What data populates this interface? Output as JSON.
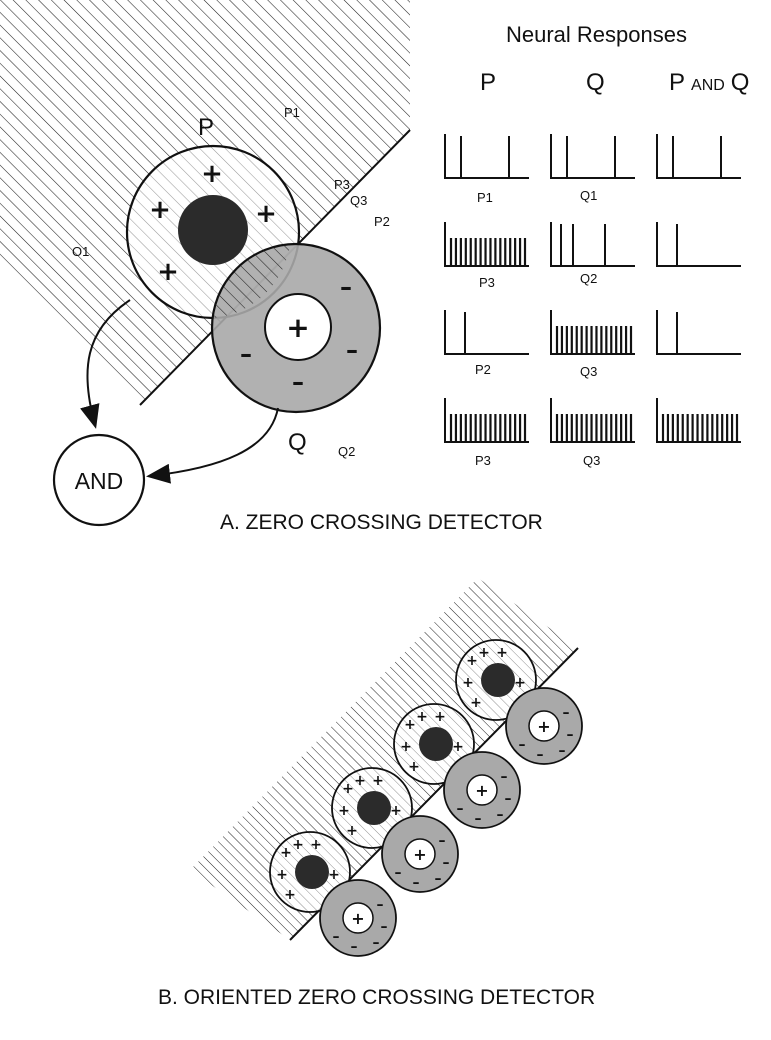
{
  "title": "Neural Responses",
  "columns": {
    "p": "P",
    "q": "Q",
    "p_and_q_pre": "P",
    "p_and_q_and": "AND",
    "p_and_q_post": "Q"
  },
  "rows": [
    {
      "p_label": "P1",
      "q_label": "Q1",
      "p_spikes": 2,
      "q_spikes": 2,
      "pq_spikes": 2
    },
    {
      "p_label": "P3",
      "q_label": "Q2",
      "p_spikes": 16,
      "q_spikes": 3,
      "pq_spikes": 1
    },
    {
      "p_label": "P2",
      "q_label": "Q3",
      "p_spikes": 1,
      "q_spikes": 16,
      "pq_spikes": 1
    },
    {
      "p_label": "P3",
      "q_label": "Q3",
      "p_spikes": 16,
      "q_spikes": 16,
      "pq_spikes": 16
    }
  ],
  "diagram_a": {
    "field_p": "P",
    "field_q": "Q",
    "and_node": "AND",
    "points": {
      "p1": "P1",
      "p3": "P3",
      "q3": "Q3",
      "p2": "P2",
      "o1": "O1",
      "q2": "Q2"
    },
    "plus": "+",
    "minus": "–",
    "caption": "A.  ZERO CROSSING DETECTOR"
  },
  "diagram_b": {
    "caption": "B.  ORIENTED ZERO CROSSING DETECTOR",
    "pairs": 4
  }
}
